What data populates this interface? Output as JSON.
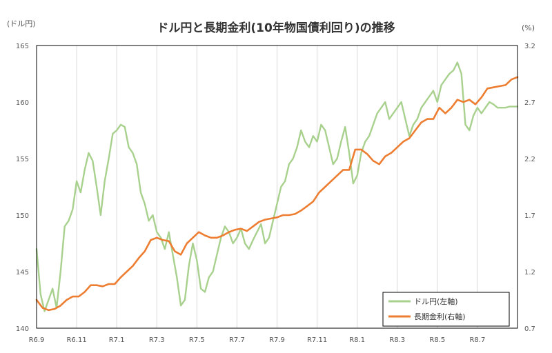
{
  "chart_data": {
    "type": "line",
    "title": "ドル円と長期金利(10年物国債利回り)の推移",
    "y_left_unit": "(ドル円)",
    "y_right_unit": "(%)",
    "ylim_left": [
      140,
      165
    ],
    "ylim_right": [
      0.7,
      3.2
    ],
    "yticks_left": [
      "165",
      "160",
      "155",
      "150",
      "145",
      "140"
    ],
    "yticks_right": [
      "3.2",
      "2.7",
      "2.2",
      "1.7",
      "1.2",
      "0.7"
    ],
    "x_ticks": [
      "R6.9",
      "R6.11",
      "R7.1",
      "R7.3",
      "R7.5",
      "R7.7",
      "R7.9",
      "R7.11",
      "R8.1",
      "R8.3",
      "R8.5",
      "R8.7"
    ],
    "x_range_months": [
      0,
      24
    ],
    "grid": {
      "vertical": true,
      "horizontal": false
    },
    "legend_position": "bottom-right",
    "colors": {
      "usd_jpy": "#a9d18e",
      "jgb_10y": "#ed7d31",
      "grid": "#d9d9d9",
      "frame": "#000000"
    },
    "series": [
      {
        "name": "ドル円(左軸)",
        "axis": "left",
        "x": [
          0,
          0.2,
          0.4,
          0.6,
          0.8,
          1.0,
          1.2,
          1.4,
          1.6,
          1.8,
          2.0,
          2.2,
          2.4,
          2.6,
          2.8,
          3.0,
          3.2,
          3.4,
          3.6,
          3.8,
          4.0,
          4.2,
          4.4,
          4.6,
          4.8,
          5.0,
          5.2,
          5.4,
          5.6,
          5.8,
          6.0,
          6.2,
          6.4,
          6.6,
          6.8,
          7.0,
          7.2,
          7.4,
          7.6,
          7.8,
          8.0,
          8.2,
          8.4,
          8.6,
          8.8,
          9.0,
          9.2,
          9.4,
          9.6,
          9.8,
          10.0,
          10.2,
          10.4,
          10.6,
          10.8,
          11.0,
          11.2,
          11.4,
          11.6,
          11.8,
          12.0,
          12.2,
          12.4,
          12.6,
          12.8,
          13.0,
          13.2,
          13.4,
          13.6,
          13.8,
          14.0,
          14.2,
          14.4,
          14.6,
          14.8,
          15.0,
          15.2,
          15.4,
          15.6,
          15.8,
          16.0,
          16.2,
          16.4,
          16.6,
          16.8,
          17.0,
          17.2,
          17.4,
          17.6,
          17.8,
          18.0,
          18.2,
          18.4,
          18.6,
          18.8,
          19.0,
          19.2,
          19.4,
          19.6,
          19.8,
          20.0,
          20.2,
          20.4,
          20.6,
          20.8,
          21.0,
          21.2,
          21.4,
          21.6,
          21.8,
          22.0,
          22.2,
          22.4,
          22.6,
          22.8,
          23.0,
          23.2,
          23.4,
          23.6,
          23.8,
          24.0
        ],
        "values": [
          147.0,
          143.0,
          141.5,
          142.5,
          143.5,
          141.8,
          145.0,
          149.0,
          149.5,
          150.5,
          153.0,
          152.0,
          154.0,
          155.5,
          154.8,
          152.5,
          150.0,
          153.0,
          155.0,
          157.2,
          157.5,
          158.0,
          157.8,
          156.0,
          155.5,
          154.5,
          152.0,
          151.0,
          149.5,
          150.0,
          148.5,
          148.0,
          147.0,
          148.5,
          146.5,
          144.5,
          142.0,
          142.5,
          145.5,
          147.5,
          146.0,
          143.5,
          143.2,
          144.5,
          145.0,
          146.5,
          148.0,
          149.0,
          148.5,
          147.5,
          148.0,
          148.8,
          147.5,
          147.0,
          147.8,
          148.5,
          149.2,
          147.5,
          148.0,
          149.5,
          151.0,
          152.5,
          153.0,
          154.5,
          155.0,
          156.0,
          157.5,
          156.5,
          156.0,
          157.0,
          156.5,
          158.0,
          157.5,
          156.0,
          154.5,
          155.0,
          156.5,
          157.8,
          155.5,
          152.8,
          153.5,
          155.5,
          156.5,
          157.0,
          158.0,
          159.0,
          159.5,
          160.0,
          158.5,
          159.0,
          159.5,
          160.0,
          158.5,
          157.0,
          158.0,
          158.5,
          159.5,
          160.0,
          160.5,
          161.0,
          160.0,
          161.5,
          162.0,
          162.5,
          162.8,
          163.5,
          162.5,
          158.0,
          157.5,
          158.8,
          159.5,
          159.0,
          159.5,
          160.0,
          159.8,
          159.5,
          159.5,
          159.5,
          159.6,
          159.6,
          159.6
        ],
        "color": "#a9d18e"
      },
      {
        "name": "長期金利(右軸)",
        "axis": "right",
        "x": [
          0,
          0.3,
          0.6,
          0.9,
          1.2,
          1.5,
          1.8,
          2.1,
          2.4,
          2.7,
          3.0,
          3.3,
          3.6,
          3.9,
          4.2,
          4.5,
          4.8,
          5.1,
          5.4,
          5.7,
          6.0,
          6.3,
          6.6,
          6.9,
          7.2,
          7.5,
          7.8,
          8.1,
          8.4,
          8.7,
          9.0,
          9.3,
          9.6,
          9.9,
          10.2,
          10.5,
          10.8,
          11.1,
          11.4,
          11.7,
          12.0,
          12.3,
          12.6,
          12.9,
          13.2,
          13.5,
          13.8,
          14.1,
          14.4,
          14.7,
          15.0,
          15.3,
          15.6,
          15.9,
          16.2,
          16.5,
          16.8,
          17.1,
          17.4,
          17.7,
          18.0,
          18.3,
          18.6,
          18.9,
          19.2,
          19.5,
          19.8,
          20.1,
          20.4,
          20.7,
          21.0,
          21.3,
          21.6,
          21.9,
          22.2,
          22.5,
          22.8,
          23.1,
          23.4,
          23.7,
          24.0
        ],
        "values": [
          0.95,
          0.88,
          0.86,
          0.87,
          0.9,
          0.95,
          0.98,
          0.98,
          1.02,
          1.08,
          1.08,
          1.07,
          1.09,
          1.09,
          1.15,
          1.2,
          1.25,
          1.32,
          1.38,
          1.48,
          1.5,
          1.48,
          1.47,
          1.38,
          1.35,
          1.45,
          1.5,
          1.55,
          1.52,
          1.5,
          1.5,
          1.52,
          1.55,
          1.57,
          1.58,
          1.56,
          1.6,
          1.64,
          1.66,
          1.67,
          1.68,
          1.7,
          1.7,
          1.71,
          1.74,
          1.78,
          1.82,
          1.9,
          1.95,
          2.0,
          2.05,
          2.1,
          2.1,
          2.28,
          2.28,
          2.24,
          2.18,
          2.15,
          2.22,
          2.25,
          2.3,
          2.35,
          2.38,
          2.45,
          2.52,
          2.55,
          2.55,
          2.65,
          2.6,
          2.65,
          2.72,
          2.7,
          2.72,
          2.68,
          2.74,
          2.82,
          2.83,
          2.84,
          2.85,
          2.9,
          2.92
        ],
        "color": "#ed7d31"
      }
    ]
  }
}
